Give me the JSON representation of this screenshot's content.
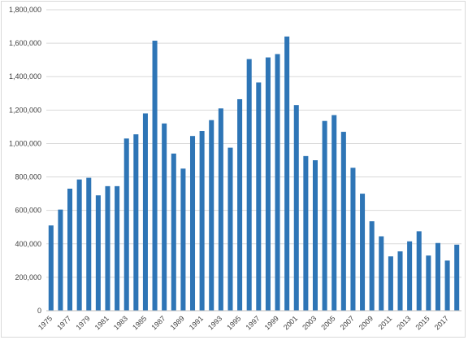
{
  "chart_data": {
    "type": "bar",
    "title": "",
    "xlabel": "",
    "ylabel": "",
    "ylim": [
      0,
      1800000
    ],
    "y_ticks": [
      0,
      200000,
      400000,
      600000,
      800000,
      1000000,
      1200000,
      1400000,
      1600000,
      1800000
    ],
    "y_tick_labels": [
      "0",
      "200,000",
      "400,000",
      "600,000",
      "800,000",
      "1,000,000",
      "1,200,000",
      "1,400,000",
      "1,600,000",
      "1,800,000"
    ],
    "grid": true,
    "legend": "none",
    "bar_color": "#2E75B6",
    "gridline_color": "#d9d9d9",
    "categories": [
      "1975",
      "1976",
      "1977",
      "1978",
      "1979",
      "1980",
      "1981",
      "1982",
      "1983",
      "1984",
      "1985",
      "1986",
      "1987",
      "1988",
      "1989",
      "1990",
      "1991",
      "1992",
      "1993",
      "1994",
      "1995",
      "1996",
      "1997",
      "1998",
      "1999",
      "2000",
      "2001",
      "2002",
      "2003",
      "2004",
      "2005",
      "2006",
      "2007",
      "2008",
      "2009",
      "2010",
      "2011",
      "2012",
      "2013",
      "2014",
      "2015",
      "2016",
      "2017",
      "2018"
    ],
    "x_tick_labels": [
      "1975",
      "1977",
      "1979",
      "1981",
      "1983",
      "1985",
      "1987",
      "1989",
      "1991",
      "1993",
      "1995",
      "1997",
      "1999",
      "2001",
      "2003",
      "2005",
      "2007",
      "2009",
      "2011",
      "2013",
      "2015",
      "2017"
    ],
    "values": [
      510000,
      605000,
      730000,
      785000,
      795000,
      690000,
      745000,
      745000,
      1030000,
      1055000,
      1180000,
      1615000,
      1120000,
      940000,
      850000,
      1045000,
      1075000,
      1140000,
      1210000,
      975000,
      1265000,
      1505000,
      1365000,
      1515000,
      1535000,
      1640000,
      1230000,
      925000,
      900000,
      1135000,
      1170000,
      1070000,
      855000,
      700000,
      535000,
      445000,
      325000,
      355000,
      415000,
      475000,
      330000,
      405000,
      300000,
      395000
    ]
  }
}
